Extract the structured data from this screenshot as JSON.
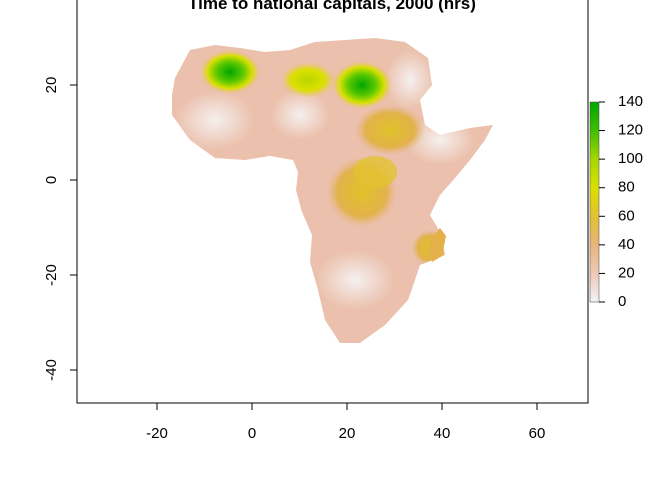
{
  "title": "Time to national capitals, 2000 (hrs)",
  "chart_data": {
    "type": "heatmap",
    "title": "Time to national capitals, 2000 (hrs)",
    "x_ticks": [
      "-20",
      "0",
      "20",
      "40",
      "60"
    ],
    "y_ticks": [
      "-40",
      "-20",
      "0",
      "20"
    ],
    "xlim": [
      -37,
      71
    ],
    "ylim": [
      -47,
      37
    ],
    "colorbar": {
      "min": 0,
      "max": 140,
      "ticks": [
        "0",
        "20",
        "40",
        "60",
        "80",
        "100",
        "120",
        "140"
      ],
      "colors": [
        "#f2f2f2",
        "#eec9b8",
        "#e6b57a",
        "#e3c234",
        "#d8e000",
        "#7fd400",
        "#1fb500",
        "#00a600"
      ]
    },
    "hotspots": [
      {
        "lon": -5,
        "lat": 23,
        "value": 140
      },
      {
        "lon": 12,
        "lat": 22,
        "value": 75
      },
      {
        "lon": 25,
        "lat": 19,
        "value": 130
      },
      {
        "lon": 22,
        "lat": 1,
        "value": 55
      },
      {
        "lon": 37,
        "lat": -13,
        "value": 45
      }
    ]
  },
  "colors": {
    "land_base": "#ebc0ac",
    "low": "#f3e8e4",
    "mid": "#e3b04a",
    "high": "#00a600"
  }
}
